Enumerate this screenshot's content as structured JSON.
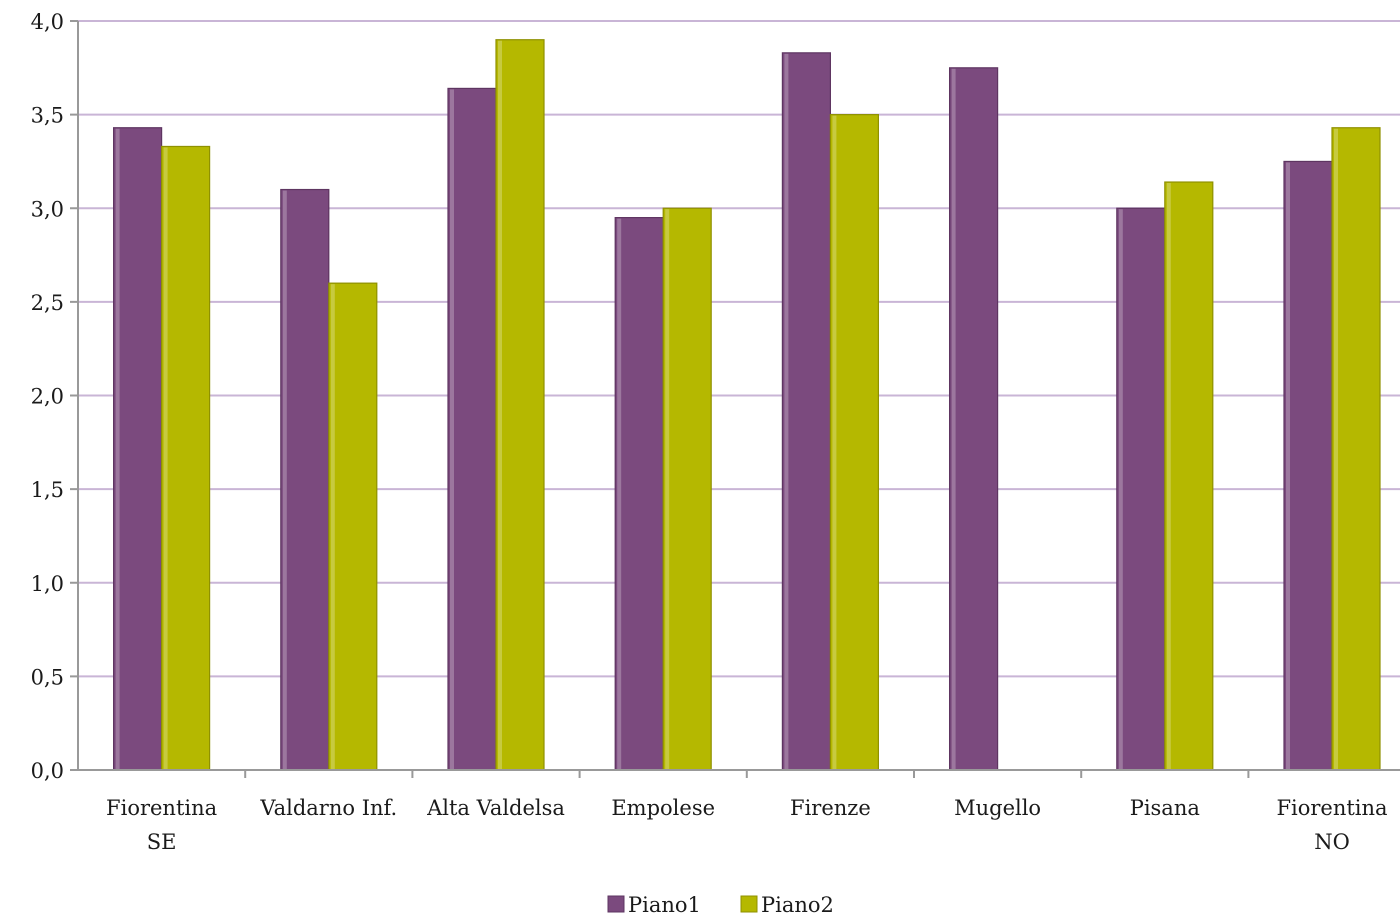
{
  "chart_data": {
    "type": "bar",
    "title": "",
    "xlabel": "",
    "ylabel": "",
    "categories": [
      [
        "Fiorentina",
        "SE"
      ],
      [
        "Valdarno Inf."
      ],
      [
        "Alta Valdelsa"
      ],
      [
        "Empolese"
      ],
      [
        "Firenze"
      ],
      [
        "Mugello"
      ],
      [
        "Pisana"
      ],
      [
        "Fiorentina",
        "NO"
      ]
    ],
    "series": [
      {
        "name": "Piano1",
        "color": "#7B4A7E",
        "values": [
          3.43,
          3.1,
          3.64,
          2.95,
          3.83,
          3.75,
          3.0,
          3.25
        ]
      },
      {
        "name": "Piano2",
        "color": "#B5B800",
        "values": [
          3.33,
          2.6,
          3.9,
          3.0,
          3.5,
          null,
          3.14,
          3.43
        ]
      }
    ],
    "ylim": [
      0,
      4
    ],
    "yticks": [
      "0,0",
      "0,5",
      "1,0",
      "1,5",
      "2,0",
      "2,5",
      "3,0",
      "3,5",
      "4,0"
    ],
    "ytick_values": [
      0,
      0.5,
      1.0,
      1.5,
      2.0,
      2.5,
      3.0,
      3.5,
      4.0
    ],
    "grid": true,
    "gridline_color": "#C9B5D6",
    "legend_position": "bottom"
  }
}
